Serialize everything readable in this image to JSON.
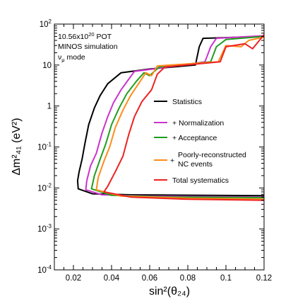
{
  "chart_data": {
    "type": "line",
    "xlabel": "sin²(θ₂₄)",
    "ylabel": "Δm²₄₁ (eV²)",
    "xlim": [
      0.01,
      0.12
    ],
    "ylim": [
      0.0001,
      100
    ],
    "yscale": "log",
    "x_ticks": [
      0.02,
      0.04,
      0.06,
      0.08,
      0.1,
      0.12
    ],
    "x_tick_labels": [
      "0.02",
      "0.04",
      "0.06",
      "0.08",
      "0.1",
      "0.12"
    ],
    "y_ticks": [
      0.0001,
      0.001,
      0.01,
      0.1,
      1,
      10,
      100
    ],
    "grid": false,
    "legend_position": "right",
    "annotations": {
      "line1_base": "10.56x10",
      "line1_exp": "20",
      "line1_unit": " POT",
      "line2": "MINOS simulation",
      "line3_nu": "ν",
      "line3_mu": "μ",
      "line3_rest": " mode"
    },
    "series": [
      {
        "name": "Statistics",
        "color": "#000000",
        "points": [
          [
            0.12,
            50
          ],
          [
            0.088,
            45
          ],
          [
            0.086,
            28
          ],
          [
            0.084,
            10
          ],
          [
            0.06,
            8
          ],
          [
            0.045,
            6.5
          ],
          [
            0.038,
            3.5
          ],
          [
            0.034,
            1.8
          ],
          [
            0.031,
            0.9
          ],
          [
            0.028,
            0.35
          ],
          [
            0.026,
            0.12
          ],
          [
            0.0245,
            0.05
          ],
          [
            0.023,
            0.025
          ],
          [
            0.0222,
            0.015
          ],
          [
            0.0225,
            0.0095
          ],
          [
            0.03,
            0.0072
          ],
          [
            0.05,
            0.0068
          ],
          [
            0.12,
            0.0065
          ]
        ]
      },
      {
        "name": "+ Normalization",
        "color": "#cc33cc",
        "points": [
          [
            0.12,
            52
          ],
          [
            0.095,
            45
          ],
          [
            0.092,
            28
          ],
          [
            0.089,
            12
          ],
          [
            0.062,
            8
          ],
          [
            0.052,
            7
          ],
          [
            0.049,
            4.5
          ],
          [
            0.045,
            2.5
          ],
          [
            0.041,
            1.2
          ],
          [
            0.038,
            0.55
          ],
          [
            0.035,
            0.22
          ],
          [
            0.032,
            0.07
          ],
          [
            0.029,
            0.035
          ],
          [
            0.027,
            0.015
          ],
          [
            0.0265,
            0.009
          ],
          [
            0.035,
            0.0068
          ],
          [
            0.06,
            0.0063
          ],
          [
            0.12,
            0.006
          ]
        ]
      },
      {
        "name": "+ Acceptance",
        "color": "#1f9e1f",
        "points": [
          [
            0.12,
            50
          ],
          [
            0.1,
            42
          ],
          [
            0.095,
            28
          ],
          [
            0.092,
            12
          ],
          [
            0.065,
            9
          ],
          [
            0.06,
            5.5
          ],
          [
            0.057,
            6.5
          ],
          [
            0.053,
            4
          ],
          [
            0.048,
            2
          ],
          [
            0.044,
            0.9
          ],
          [
            0.04,
            0.35
          ],
          [
            0.037,
            0.12
          ],
          [
            0.034,
            0.05
          ],
          [
            0.031,
            0.02
          ],
          [
            0.0295,
            0.0095
          ],
          [
            0.04,
            0.0066
          ],
          [
            0.07,
            0.006
          ],
          [
            0.12,
            0.0058
          ]
        ]
      },
      {
        "name": "Poorly-reconstructed NC events",
        "color": "#ff8c1a",
        "points": [
          [
            0.12,
            48
          ],
          [
            0.112,
            40
          ],
          [
            0.108,
            28
          ],
          [
            0.1,
            30
          ],
          [
            0.096,
            12
          ],
          [
            0.064,
            9.5
          ],
          [
            0.061,
            5.5
          ],
          [
            0.058,
            6.5
          ],
          [
            0.055,
            4
          ],
          [
            0.05,
            1.8
          ],
          [
            0.046,
            0.8
          ],
          [
            0.042,
            0.3
          ],
          [
            0.039,
            0.1
          ],
          [
            0.036,
            0.045
          ],
          [
            0.033,
            0.018
          ],
          [
            0.032,
            0.009
          ],
          [
            0.045,
            0.0063
          ],
          [
            0.08,
            0.0056
          ],
          [
            0.12,
            0.0053
          ]
        ]
      },
      {
        "name": "Total systematics",
        "color": "#ee2222",
        "points": [
          [
            0.12,
            55
          ],
          [
            0.114,
            25
          ],
          [
            0.11,
            33
          ],
          [
            0.1,
            28
          ],
          [
            0.097,
            12
          ],
          [
            0.068,
            9
          ],
          [
            0.064,
            6
          ],
          [
            0.061,
            2.5
          ],
          [
            0.056,
            1.3
          ],
          [
            0.052,
            0.55
          ],
          [
            0.049,
            0.2
          ],
          [
            0.046,
            0.06
          ],
          [
            0.042,
            0.025
          ],
          [
            0.038,
            0.011
          ],
          [
            0.036,
            0.008
          ],
          [
            0.05,
            0.006
          ],
          [
            0.08,
            0.0053
          ],
          [
            0.12,
            0.005
          ]
        ]
      }
    ]
  }
}
